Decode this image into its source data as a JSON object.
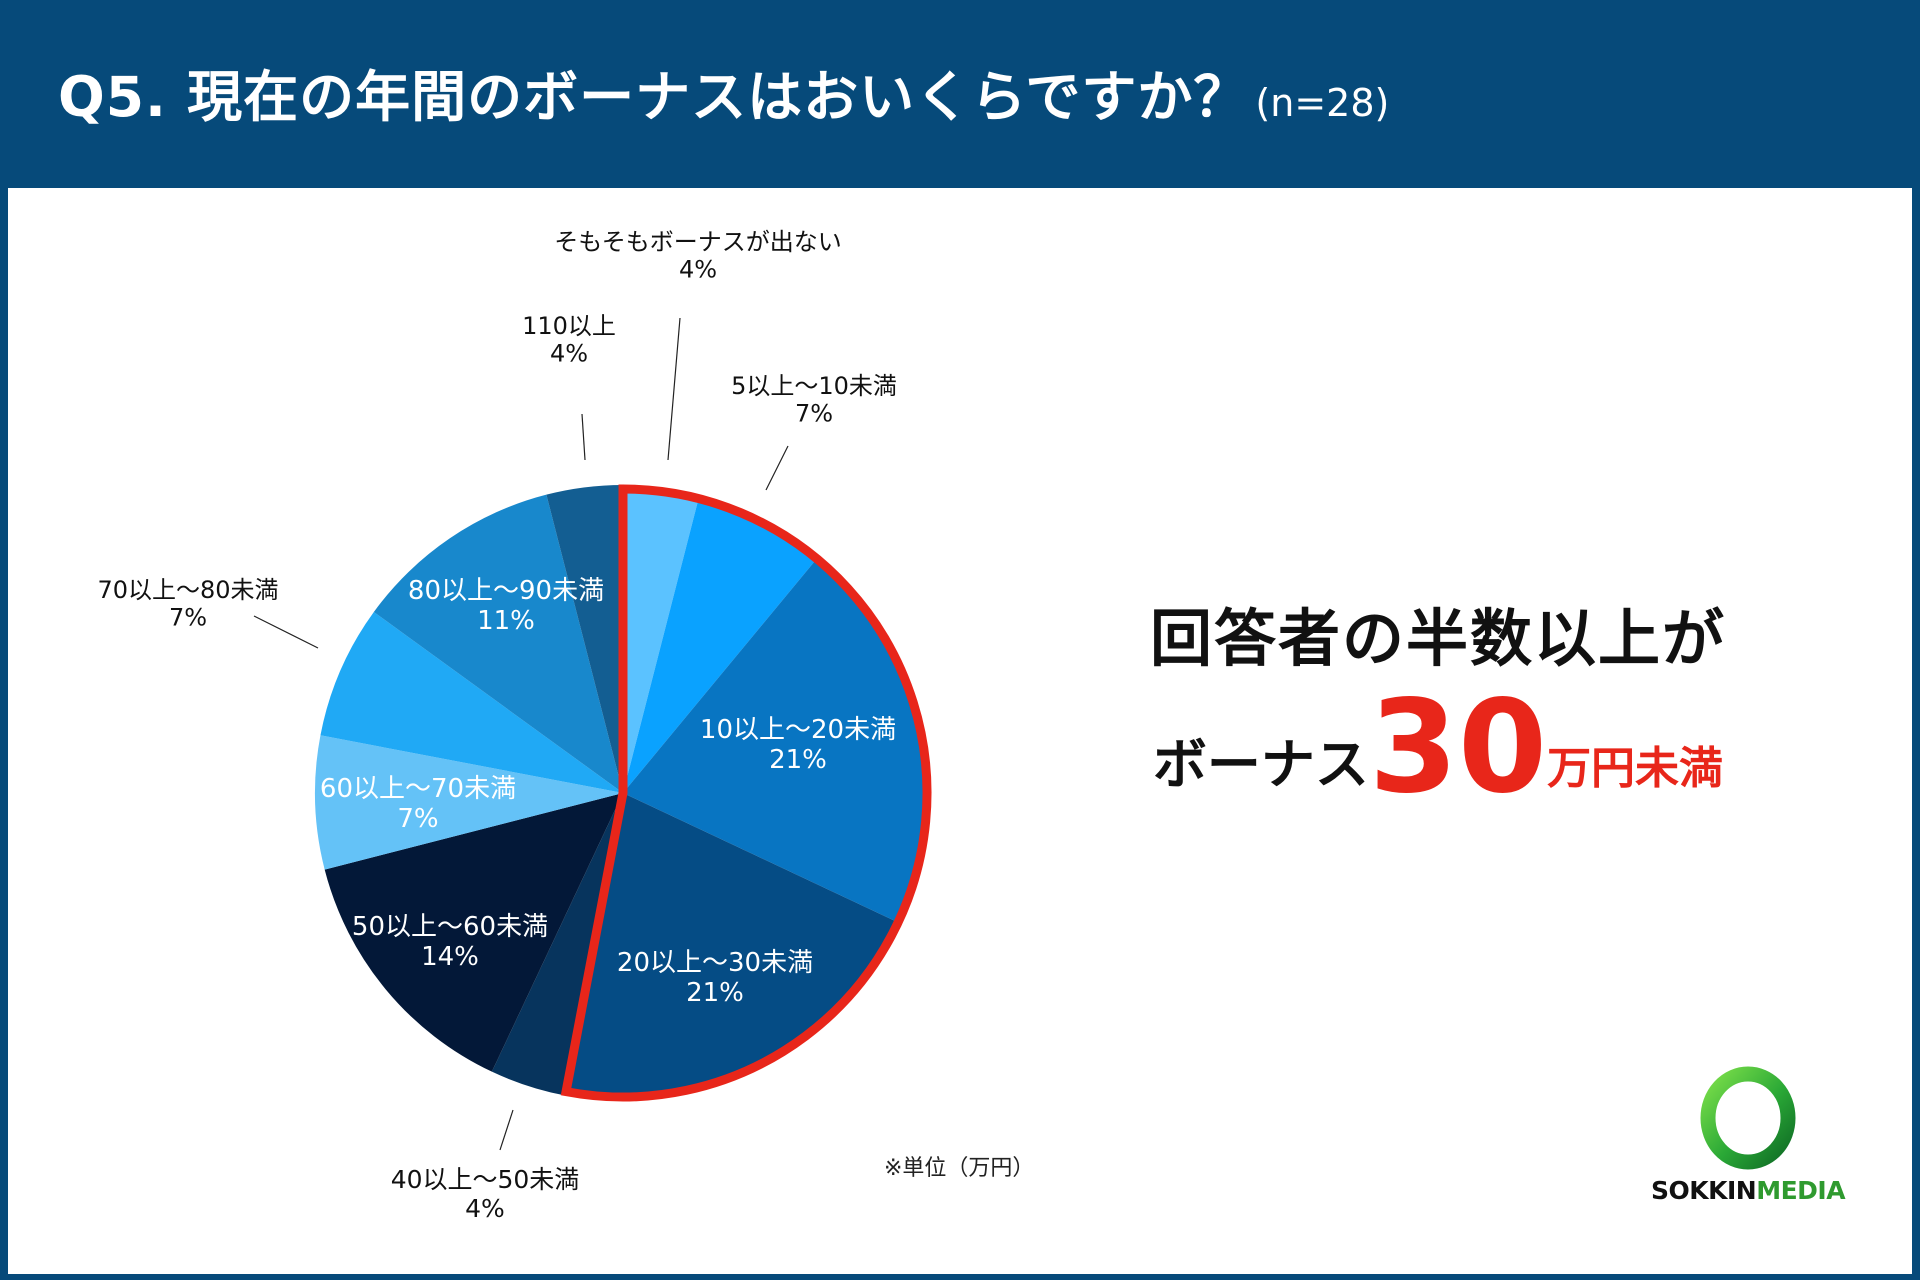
{
  "header": {
    "title": "Q5. 現在の年間のボーナスはおいくらですか？",
    "sample": "(n=28)"
  },
  "chart_data": {
    "type": "pie",
    "start_angle_deg": 0,
    "direction": "clockwise",
    "slices": [
      {
        "label": "そもそもボーナスが出ない",
        "value": 4,
        "display": "4%",
        "color": "#5bc2ff"
      },
      {
        "label": "5以上〜10未満",
        "value": 7,
        "display": "7%",
        "color": "#0aa2ff"
      },
      {
        "label": "10以上〜20未満",
        "value": 21,
        "display": "21%",
        "color": "#0875c2"
      },
      {
        "label": "20以上〜30未満",
        "value": 21,
        "display": "21%",
        "color": "#054c85"
      },
      {
        "label": "40以上〜50未満",
        "value": 4,
        "display": "4%",
        "color": "#07345d"
      },
      {
        "label": "50以上〜60未満",
        "value": 14,
        "display": "14%",
        "color": "#031838"
      },
      {
        "label": "60以上〜70未満",
        "value": 7,
        "display": "7%",
        "color": "#64c2f7"
      },
      {
        "label": "70以上〜80未満",
        "value": 7,
        "display": "7%",
        "color": "#20a9f5"
      },
      {
        "label": "80以上〜90未満",
        "value": 11,
        "display": "11%",
        "color": "#1888cc"
      },
      {
        "label": "110以上",
        "value": 4,
        "display": "4%",
        "color": "#135e92"
      }
    ],
    "highlight": {
      "slices": [
        0,
        1,
        2,
        3
      ],
      "color": "#e8261a"
    }
  },
  "callout": {
    "line1": "回答者の半数以上が",
    "prefix": "ボーナス",
    "number": "30",
    "suffix": "万円未満"
  },
  "unit_note": "※単位（万円）",
  "logo": {
    "text_left": "SOKKIN",
    "text_right": "MEDIA"
  }
}
